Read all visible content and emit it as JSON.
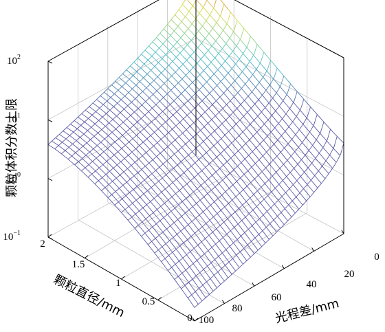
{
  "chart_data": {
    "type": "surface",
    "title": "",
    "xlabel": "光程差/mm",
    "ylabel": "颗粒直径/mm",
    "zlabel": "颗粒体积分数上限",
    "x_ticks": [
      "0",
      "20",
      "40",
      "60",
      "80",
      "100"
    ],
    "y_ticks": [
      "0",
      "0.5",
      "1",
      "1.5",
      "2"
    ],
    "z_ticks": [
      {
        "base": "10",
        "exp": "−1"
      },
      {
        "base": "10",
        "exp": "0"
      },
      {
        "base": "10",
        "exp": "1"
      },
      {
        "base": "10",
        "exp": "2"
      }
    ],
    "xlim": [
      0,
      100
    ],
    "ylim": [
      0,
      2
    ],
    "zlim": [
      0.1,
      100
    ],
    "zscale": "log",
    "grid": true,
    "colormap": [
      "#5b5da8",
      "#4fc3c8",
      "#d8e04a",
      "#e0402a"
    ],
    "samples": [
      {
        "x": 100,
        "y": 2,
        "z": 3.8
      },
      {
        "x": 100,
        "y": 0,
        "z": 0.17
      },
      {
        "x": 0,
        "y": 2,
        "z": 110
      },
      {
        "x": 0,
        "y": 0,
        "z": 3.5
      }
    ]
  }
}
